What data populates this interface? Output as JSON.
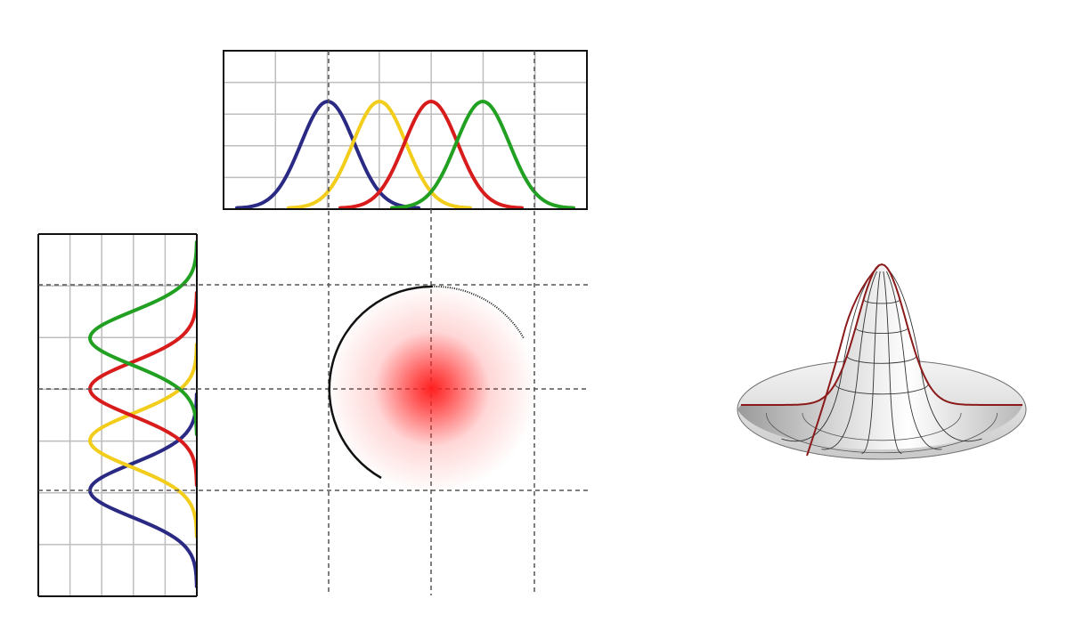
{
  "diagram": {
    "curve_colors": {
      "blue": "#2a2a85",
      "yellow": "#f2cd1c",
      "red": "#d81c1c",
      "green": "#21a021"
    },
    "blob_color": "#ff2020",
    "surface_edge_color": "#8b1a1a",
    "grid_color": "#bdbdbd",
    "dashed_line_color": "#555555"
  }
}
